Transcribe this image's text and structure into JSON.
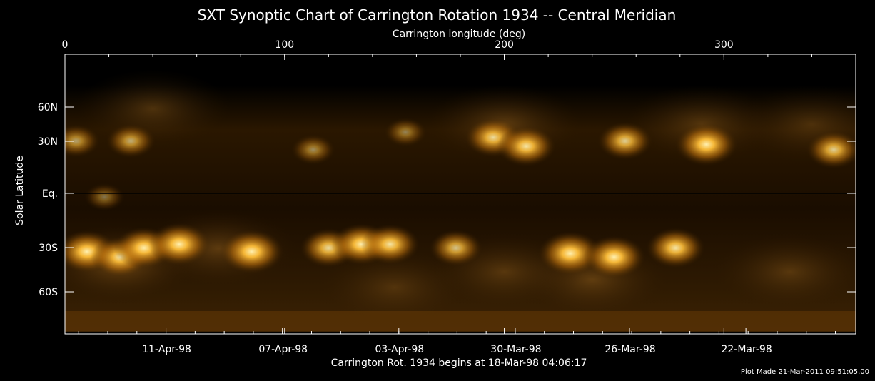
{
  "chart_data": {
    "type": "heatmap",
    "title": "SXT Synoptic Chart of Carrington Rotation 1934 -- Central Meridian",
    "xlabel_top": "Carrington longitude (deg)",
    "ylabel": "Solar Latitude",
    "xlabel_bottom": "Carrington Rot. 1934 begins at 18-Mar-98 04:06:17",
    "footer": "Plot Made 21-Mar-2011 09:51:05.00",
    "colormap": [
      "#000000",
      "#3a1f00",
      "#8a5200",
      "#d98a16",
      "#ffc040",
      "#fff3c0"
    ],
    "xlim": [
      0,
      360
    ],
    "ylim": [
      -90,
      90
    ],
    "top_ticks": [
      {
        "value": 0,
        "label": "0"
      },
      {
        "value": 100,
        "label": "100"
      },
      {
        "value": 200,
        "label": "200"
      },
      {
        "value": 300,
        "label": "300"
      }
    ],
    "left_ticks": [
      {
        "value": 60,
        "label": "60N"
      },
      {
        "value": 30,
        "label": "30N"
      },
      {
        "value": 0,
        "label": "Eq."
      },
      {
        "value": -30,
        "label": "30S"
      },
      {
        "value": -60,
        "label": "60S"
      }
    ],
    "bottom_ticks": [
      {
        "value": 46,
        "label": "11-Apr-98"
      },
      {
        "value": 99,
        "label": "07-Apr-98"
      },
      {
        "value": 152,
        "label": "03-Apr-98"
      },
      {
        "value": 205,
        "label": "30-Mar-98"
      },
      {
        "value": 257,
        "label": "26-Mar-98"
      },
      {
        "value": 310,
        "label": "22-Mar-98"
      }
    ],
    "active_regions": [
      {
        "lon": 10,
        "lat": -32,
        "intensity": 0.95
      },
      {
        "lon": 25,
        "lat": -35,
        "intensity": 0.85
      },
      {
        "lon": 36,
        "lat": -30,
        "intensity": 0.9
      },
      {
        "lon": 52,
        "lat": -28,
        "intensity": 0.95
      },
      {
        "lon": 85,
        "lat": -32,
        "intensity": 1.0
      },
      {
        "lon": 120,
        "lat": -30,
        "intensity": 0.8
      },
      {
        "lon": 135,
        "lat": -28,
        "intensity": 0.9
      },
      {
        "lon": 148,
        "lat": -28,
        "intensity": 0.85
      },
      {
        "lon": 178,
        "lat": -30,
        "intensity": 0.7
      },
      {
        "lon": 230,
        "lat": -33,
        "intensity": 1.0
      },
      {
        "lon": 250,
        "lat": -35,
        "intensity": 0.95
      },
      {
        "lon": 278,
        "lat": -30,
        "intensity": 0.85
      },
      {
        "lon": 30,
        "lat": 30,
        "intensity": 0.6
      },
      {
        "lon": 195,
        "lat": 32,
        "intensity": 0.8
      },
      {
        "lon": 210,
        "lat": 27,
        "intensity": 0.85
      },
      {
        "lon": 255,
        "lat": 30,
        "intensity": 0.75
      },
      {
        "lon": 292,
        "lat": 28,
        "intensity": 0.95
      },
      {
        "lon": 350,
        "lat": 25,
        "intensity": 0.75
      },
      {
        "lon": 5,
        "lat": 30,
        "intensity": 0.55
      },
      {
        "lon": 113,
        "lat": 25,
        "intensity": 0.45
      },
      {
        "lon": 155,
        "lat": 35,
        "intensity": 0.4
      },
      {
        "lon": 18,
        "lat": -2,
        "intensity": 0.35
      }
    ],
    "diffuse_regions": [
      {
        "lon": 25,
        "lat": -45,
        "intensity": 0.45
      },
      {
        "lon": 70,
        "lat": -35,
        "intensity": 0.35
      },
      {
        "lon": 240,
        "lat": -55,
        "intensity": 0.35
      },
      {
        "lon": 200,
        "lat": -50,
        "intensity": 0.3
      },
      {
        "lon": 330,
        "lat": -50,
        "intensity": 0.3
      },
      {
        "lon": 40,
        "lat": 55,
        "intensity": 0.3
      },
      {
        "lon": 200,
        "lat": 45,
        "intensity": 0.35
      },
      {
        "lon": 290,
        "lat": 45,
        "intensity": 0.3
      },
      {
        "lon": 340,
        "lat": 45,
        "intensity": 0.25
      },
      {
        "lon": 150,
        "lat": -60,
        "intensity": 0.25
      }
    ]
  }
}
